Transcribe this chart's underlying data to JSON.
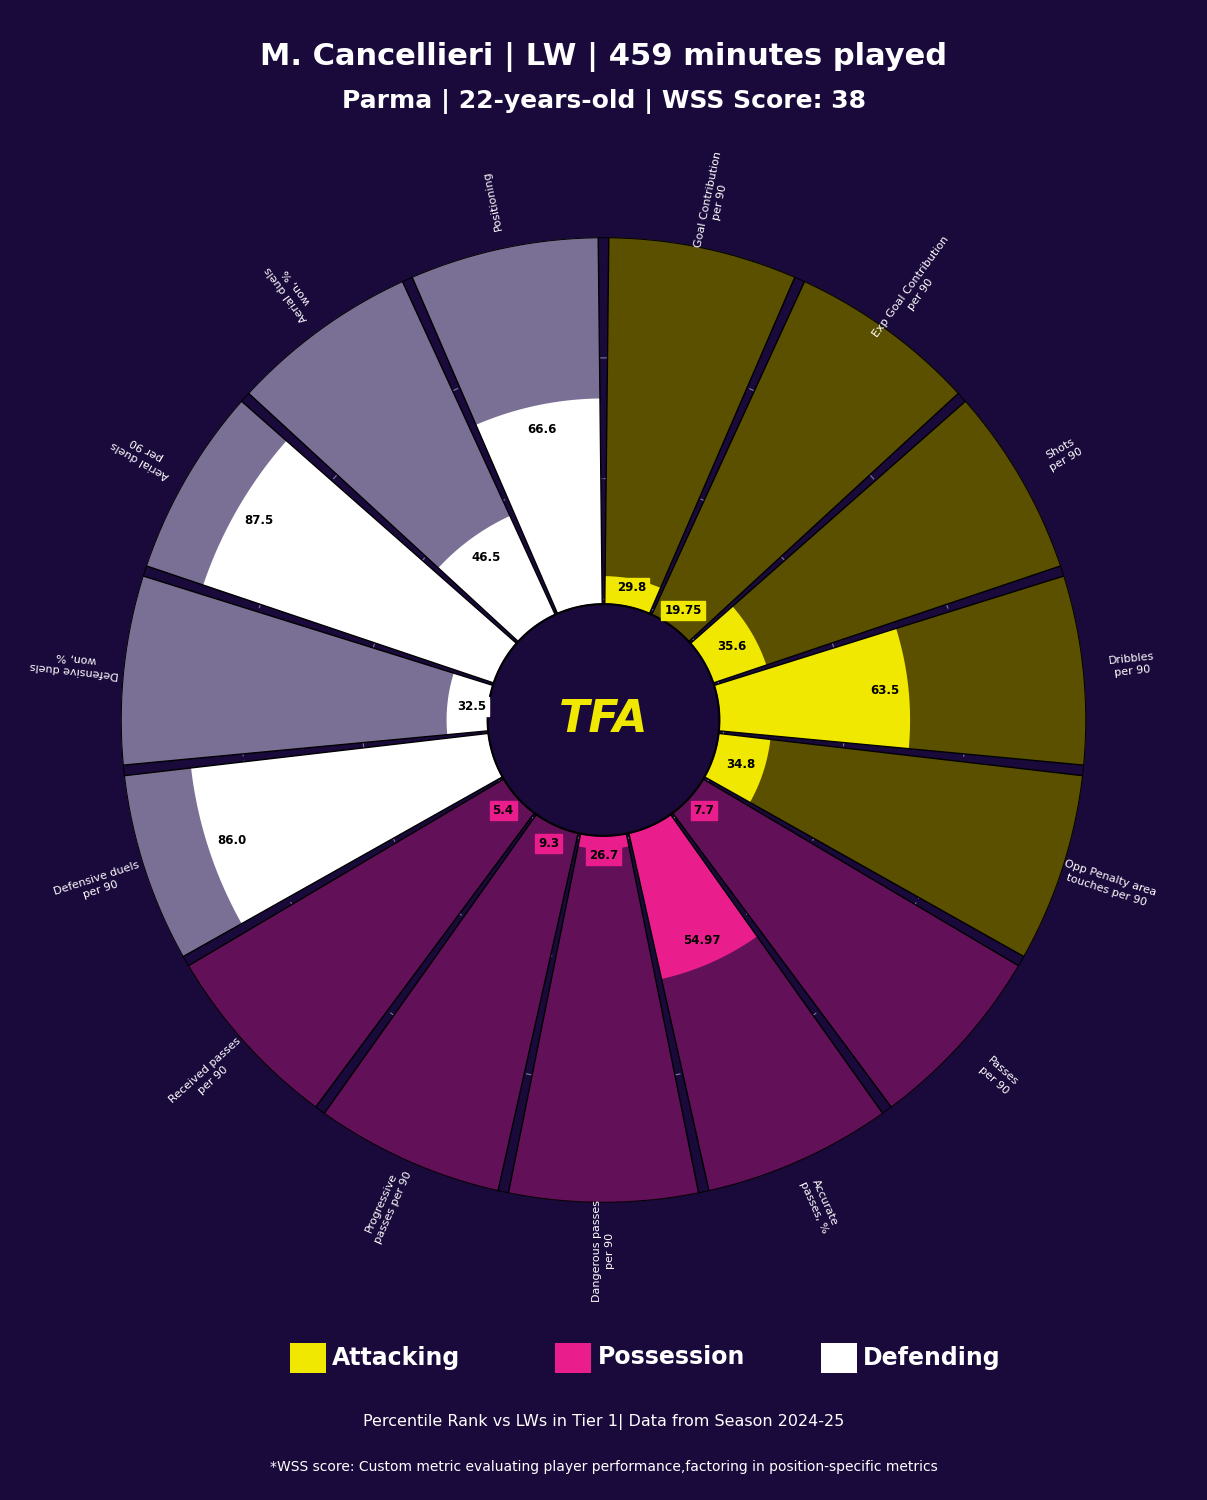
{
  "title_line1": "M. Cancellieri | LW | 459 minutes played",
  "title_line2": "Parma | 22-years-old | WSS Score: 38",
  "background_color": "#1a0a3c",
  "categories": [
    "Goal Contribution\nper 90",
    "Exp Goal Contribution\nper 90",
    "Shots\nper 90",
    "Dribbles\nper 90",
    "Opp Penalty area\ntouches per 90",
    "Passes\nper 90",
    "Accurate\npasses, %",
    "Dangerous passes\nper 90",
    "Progressive\npasses per 90",
    "Received passes\nper 90",
    "Defensive duels\nper 90",
    "Defensive duels\nwon, %",
    "Aerial duels\nper 90",
    "Aerial duels\nwon, %",
    "Positioning"
  ],
  "values": [
    29.8,
    19.75,
    35.6,
    63.5,
    34.8,
    7.7,
    54.97,
    26.7,
    9.3,
    5.4,
    86.0,
    32.5,
    87.5,
    46.5,
    66.6
  ],
  "category_types": [
    "attacking",
    "attacking",
    "attacking",
    "attacking",
    "attacking",
    "possession",
    "possession",
    "possession",
    "possession",
    "possession",
    "defending",
    "defending",
    "defending",
    "defending",
    "defending"
  ],
  "colors": {
    "attacking": "#f0e800",
    "possession": "#e91e8c",
    "defending": "#ffffff",
    "attacking_bg": "#5a5000",
    "possession_bg": "#621057",
    "defending_bg": "#7a7096"
  },
  "max_value": 100,
  "center_label": "TFA",
  "legend_items": [
    "Attacking",
    "Possession",
    "Defending"
  ],
  "legend_colors": [
    "#f0e800",
    "#e91e8c",
    "#ffffff"
  ],
  "subtitle1": "Percentile Rank vs LWs in Tier 1| Data from Season 2024-25",
  "subtitle2": "*WSS score: Custom metric evaluating player performance,factoring in position-specific metrics",
  "title_color": "#ffffff",
  "label_color": "#ffffff"
}
